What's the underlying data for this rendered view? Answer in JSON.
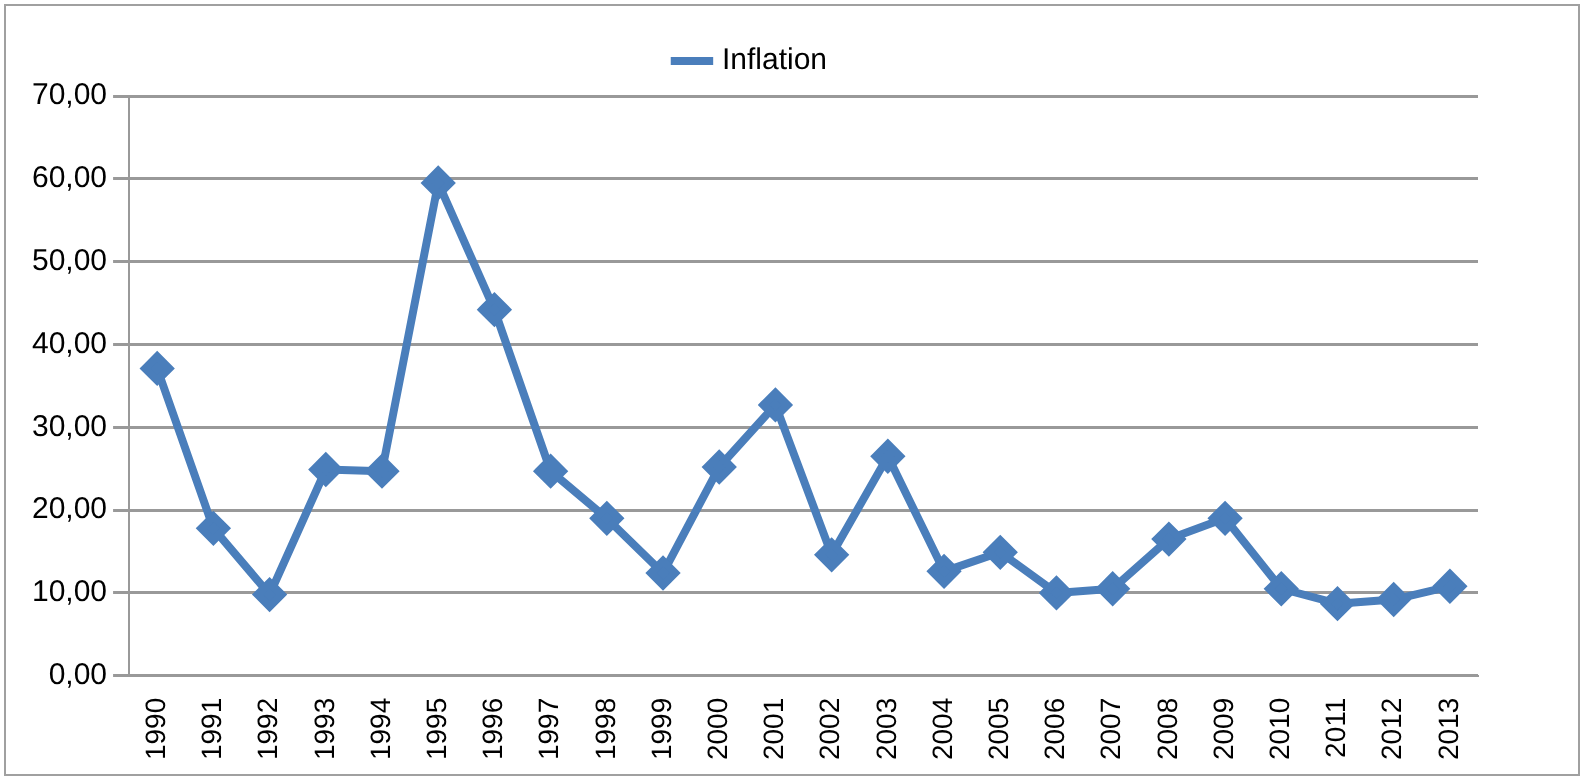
{
  "chart_data": {
    "type": "line",
    "categories": [
      "1990",
      "1991",
      "1992",
      "1993",
      "1994",
      "1995",
      "1996",
      "1997",
      "1998",
      "1999",
      "2000",
      "2001",
      "2002",
      "2003",
      "2004",
      "2005",
      "2006",
      "2007",
      "2008",
      "2009",
      "2010",
      "2011",
      "2012",
      "2013"
    ],
    "series": [
      {
        "name": "Inflation",
        "color": "#4a7ebb",
        "values": [
          37.1,
          17.8,
          9.8,
          24.9,
          24.7,
          59.5,
          44.2,
          24.7,
          19.0,
          12.4,
          25.2,
          32.7,
          14.6,
          26.5,
          12.6,
          14.9,
          10.0,
          10.5,
          16.5,
          19.0,
          10.5,
          8.7,
          9.2,
          10.8
        ]
      }
    ],
    "ylim": [
      0,
      70
    ],
    "yticks": [
      {
        "value": 0,
        "label": "0,00"
      },
      {
        "value": 10,
        "label": "10,00"
      },
      {
        "value": 20,
        "label": "20,00"
      },
      {
        "value": 30,
        "label": "30,00"
      },
      {
        "value": 40,
        "label": "40,00"
      },
      {
        "value": 50,
        "label": "50,00"
      },
      {
        "value": 60,
        "label": "60,00"
      },
      {
        "value": 70,
        "label": "70,00"
      }
    ],
    "grid": "y",
    "legend": "top",
    "marker": "diamond",
    "line_style": "solid"
  }
}
